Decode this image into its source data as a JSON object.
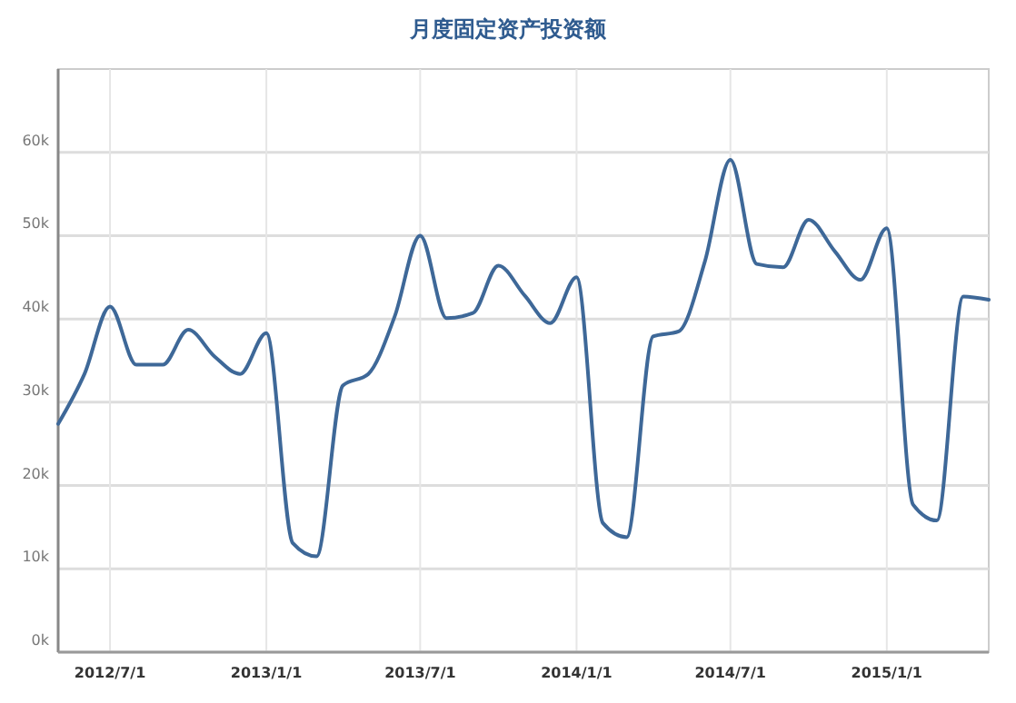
{
  "chart_data": {
    "type": "line",
    "title": "月度固定资产投资额",
    "x": [
      "2012-05",
      "2012-06",
      "2012-07",
      "2012-08",
      "2012-09",
      "2012-10",
      "2012-11",
      "2012-12",
      "2013-01",
      "2013-02",
      "2013-03",
      "2013-04",
      "2013-05",
      "2013-06",
      "2013-07",
      "2013-08",
      "2013-09",
      "2013-10",
      "2013-11",
      "2013-12",
      "2014-01",
      "2014-02",
      "2014-03",
      "2014-04",
      "2014-05",
      "2014-06",
      "2014-07",
      "2014-08",
      "2014-09",
      "2014-10",
      "2014-11",
      "2014-12",
      "2015-01",
      "2015-02",
      "2015-03",
      "2015-04",
      "2015-05"
    ],
    "series": [
      {
        "color": "#3e6898",
        "values": [
          27400,
          33400,
          41500,
          34500,
          34500,
          38700,
          35500,
          33400,
          38300,
          13100,
          11500,
          32000,
          33400,
          40300,
          50000,
          40100,
          40700,
          46400,
          42800,
          39500,
          45000,
          15500,
          13800,
          37900,
          38500,
          46900,
          59100,
          46600,
          46200,
          51900,
          48100,
          44700,
          50900,
          17700,
          15800,
          42700,
          42300
        ]
      }
    ],
    "xlim": [
      "2012-05",
      "2015-05"
    ],
    "xticks": [
      {
        "value": "2012-07-01",
        "label": "2012/7/1"
      },
      {
        "value": "2013-01-01",
        "label": "2013/1/1"
      },
      {
        "value": "2013-07-01",
        "label": "2013/7/1"
      },
      {
        "value": "2014-01-01",
        "label": "2014/1/1"
      },
      {
        "value": "2014-07-01",
        "label": "2014/7/1"
      },
      {
        "value": "2015-01-01",
        "label": "2015/1/1"
      }
    ],
    "ylim": [
      0,
      70000
    ],
    "yticks": [
      {
        "value": 0,
        "label": "0k"
      },
      {
        "value": 10000,
        "label": "10k"
      },
      {
        "value": 20000,
        "label": "20k"
      },
      {
        "value": 30000,
        "label": "30k"
      },
      {
        "value": 40000,
        "label": "40k"
      },
      {
        "value": 50000,
        "label": "50k"
      },
      {
        "value": 60000,
        "label": "60k"
      }
    ],
    "grid": true,
    "marker": "none",
    "line_style": "solid"
  }
}
